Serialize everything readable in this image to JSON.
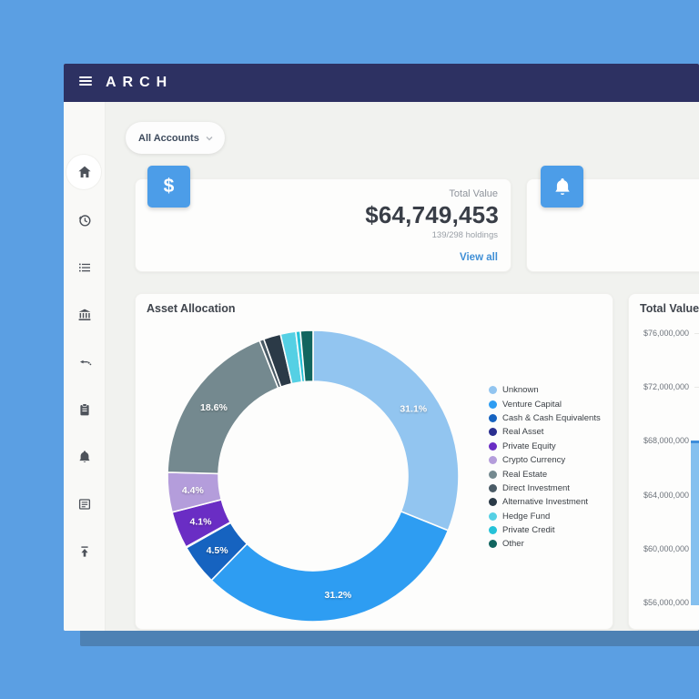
{
  "topbar": {
    "brand": "ARCH"
  },
  "icons": {
    "dollar": "$"
  },
  "sidebar": {
    "items": [
      "home",
      "activity",
      "holdings",
      "institutions",
      "flows",
      "tasks",
      "alerts",
      "documents",
      "upload"
    ]
  },
  "toolbar": {
    "account_selector": "All Accounts"
  },
  "summary_card": {
    "label": "Total Value",
    "value": "$64,749,453",
    "subtext": "139/298 holdings",
    "link": "View all"
  },
  "colors": {
    "accent_blue": "#4c9de8",
    "navy_header": "#2d3162",
    "link_blue": "#3f8fd6",
    "desktop_blue": "#5b9fe3"
  },
  "chart_data": [
    {
      "type": "pie",
      "donut": true,
      "title": "Asset Allocation",
      "legend_position": "right",
      "series": [
        {
          "name": "Unknown",
          "value": 31.1,
          "label": "31.1%",
          "color": "#92c5f0"
        },
        {
          "name": "Venture Capital",
          "value": 31.2,
          "label": "31.2%",
          "color": "#2e9df2"
        },
        {
          "name": "Cash & Cash Equivalents",
          "value": 4.5,
          "label": "4.5%",
          "color": "#1663c0"
        },
        {
          "name": "Real Asset",
          "value": 0.1,
          "label": "",
          "color": "#2a2f8f"
        },
        {
          "name": "Private Equity",
          "value": 4.1,
          "label": "4.1%",
          "color": "#6a2dc4"
        },
        {
          "name": "Crypto Currency",
          "value": 4.4,
          "label": "4.4%",
          "color": "#b49ddb"
        },
        {
          "name": "Real Estate",
          "value": 18.6,
          "label": "18.6%",
          "color": "#74898f"
        },
        {
          "name": "Direct Investment",
          "value": 0.5,
          "label": "",
          "color": "#4a5b66"
        },
        {
          "name": "Alternative Investment",
          "value": 1.9,
          "label": "",
          "color": "#2b3a47"
        },
        {
          "name": "Hedge Fund",
          "value": 1.7,
          "label": "",
          "color": "#55d0e4"
        },
        {
          "name": "Private Credit",
          "value": 0.5,
          "label": "",
          "color": "#25c2d8"
        },
        {
          "name": "Other",
          "value": 1.4,
          "label": "",
          "color": "#11655f"
        }
      ]
    },
    {
      "type": "bar",
      "title": "Total Value",
      "ylabel_ticks": [
        "$76,000,000",
        "$72,000,000",
        "$68,000,000",
        "$64,000,000",
        "$60,000,000",
        "$56,000,000"
      ],
      "ylim": [
        56000000,
        76000000
      ],
      "values": [
        68000000
      ],
      "bar_color": "#85c0ef",
      "bar_top_color": "#3e8edb",
      "grid": true,
      "partially_visible": true
    }
  ]
}
